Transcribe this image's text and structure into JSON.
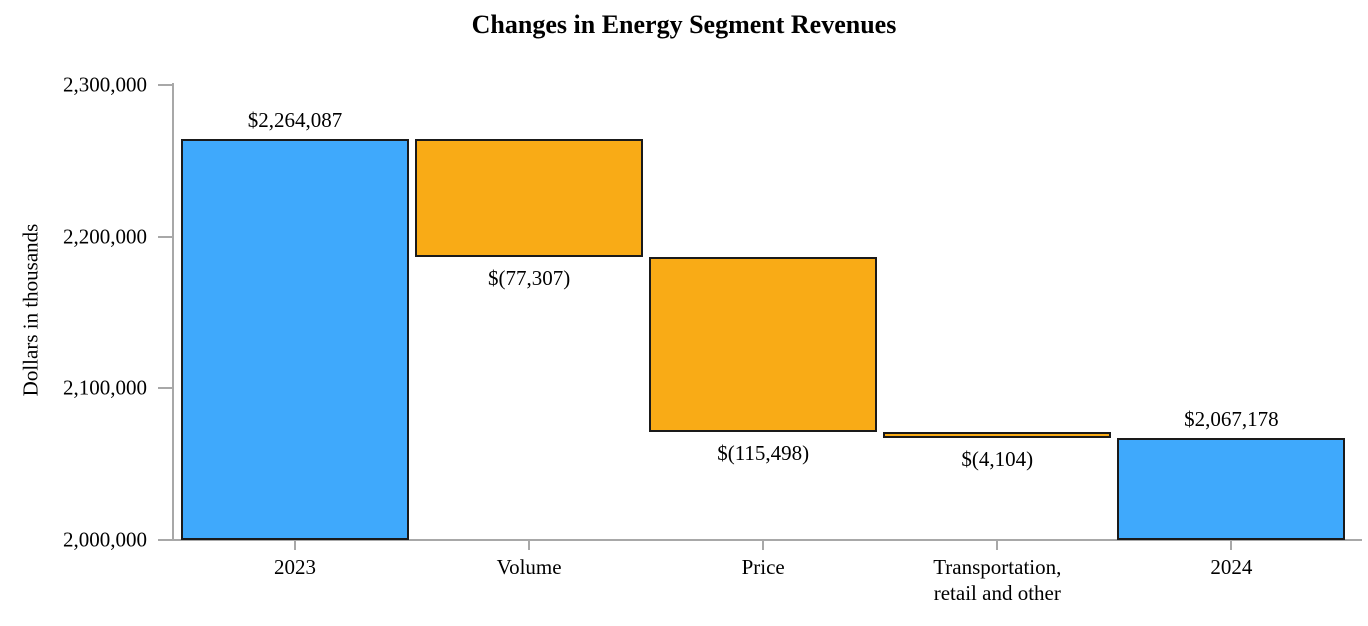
{
  "page": {
    "background": "#ffffff"
  },
  "chart_data": {
    "type": "bar",
    "subtype": "waterfall",
    "title": "Changes in Energy Segment Revenues",
    "ylabel": "Dollars in thousands",
    "xlabel": "",
    "ylim": [
      2000000,
      2300000
    ],
    "grid": false,
    "legend": false,
    "yticks": [
      {
        "value": 2000000,
        "label": "2,000,000"
      },
      {
        "value": 2100000,
        "label": "2,100,000"
      },
      {
        "value": 2200000,
        "label": "2,200,000"
      },
      {
        "value": 2300000,
        "label": "2,300,000"
      }
    ],
    "categories": [
      "2023",
      "Volume",
      "Price",
      "Transportation,\nretail and other",
      "2024"
    ],
    "bars": [
      {
        "category": "2023",
        "kind": "total",
        "value": 2264087,
        "value_label": "$2,264,087",
        "value_label_position": "above",
        "color_key": "total"
      },
      {
        "category": "Volume",
        "kind": "change",
        "value": -77307,
        "value_label": "$(77,307)",
        "value_label_position": "below",
        "color_key": "change"
      },
      {
        "category": "Price",
        "kind": "change",
        "value": -115498,
        "value_label": "$(115,498)",
        "value_label_position": "below",
        "color_key": "change"
      },
      {
        "category": "Transportation,\nretail and other",
        "kind": "change",
        "value": -4104,
        "value_label": "$(4,104)",
        "value_label_position": "below",
        "color_key": "change"
      },
      {
        "category": "2024",
        "kind": "total",
        "value": 2067178,
        "value_label": "$2,067,178",
        "value_label_position": "above",
        "color_key": "total"
      }
    ],
    "colors": {
      "total": "#3fa9fc",
      "change": "#f9ab16",
      "bar_border": "#1a1a1a",
      "axis": "#a8a8a8",
      "text": "#000000"
    }
  }
}
